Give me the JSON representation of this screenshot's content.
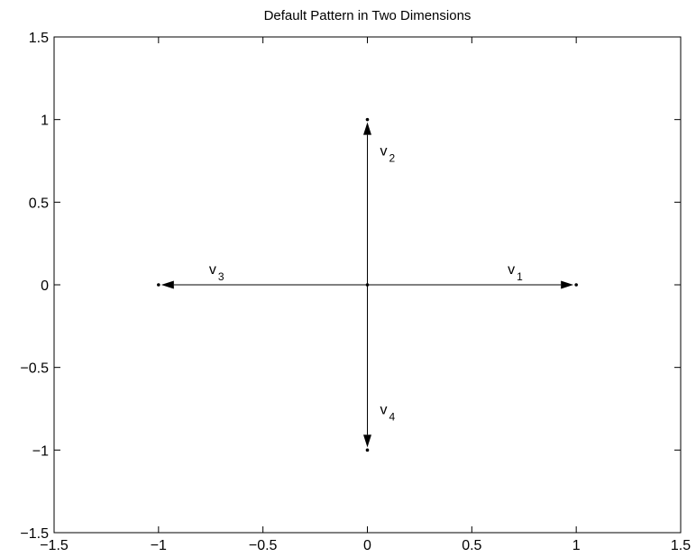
{
  "chart_data": {
    "type": "vector",
    "title": "Default Pattern in Two Dimensions",
    "xlabel": "",
    "ylabel": "",
    "xlim": [
      -1.5,
      1.5
    ],
    "ylim": [
      -1.5,
      1.5
    ],
    "xticks": [
      -1.5,
      -1,
      -0.5,
      0,
      0.5,
      1,
      1.5
    ],
    "yticks": [
      -1.5,
      -1,
      -0.5,
      0,
      0.5,
      1,
      1.5
    ],
    "xtick_labels": [
      "−1.5",
      "−1",
      "−0.5",
      "0",
      "0.5",
      "1",
      "1.5"
    ],
    "ytick_labels": [
      "−1.5",
      "−1",
      "−0.5",
      "0",
      "0.5",
      "1",
      "1.5"
    ],
    "grid": false,
    "origin": [
      0,
      0
    ],
    "vectors": [
      {
        "name": "v",
        "subscript": "1",
        "x": 1,
        "y": 0
      },
      {
        "name": "v",
        "subscript": "2",
        "x": 0,
        "y": 1
      },
      {
        "name": "v",
        "subscript": "3",
        "x": -1,
        "y": 0
      },
      {
        "name": "v",
        "subscript": "4",
        "x": 0,
        "y": -1
      }
    ],
    "colors": {
      "line": "#000000",
      "background": "#ffffff"
    }
  }
}
